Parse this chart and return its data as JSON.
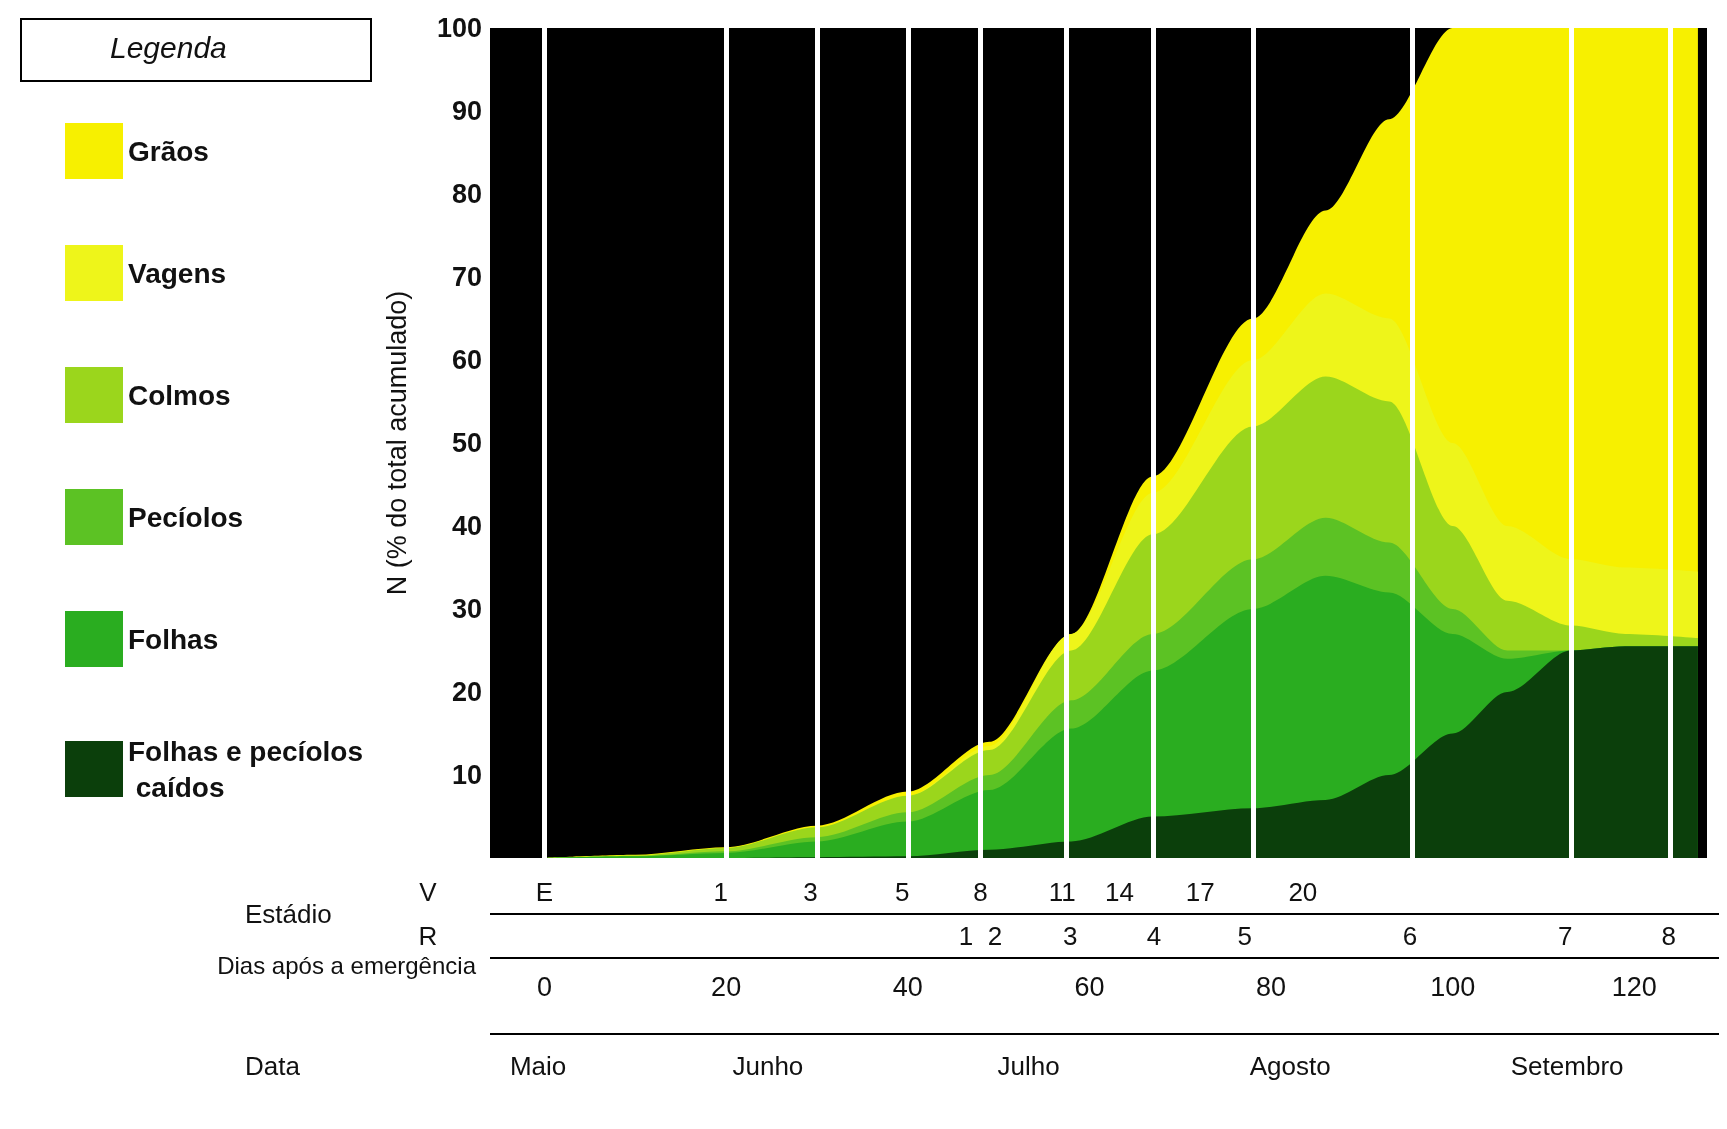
{
  "chart_data": {
    "type": "area",
    "stacked": true,
    "ylabel": "N (% do total acumulado)",
    "xlabel": "Dias após a emergência",
    "legend": "left",
    "legend_title": "Legenda",
    "annotations": [
      "Estádio",
      "V",
      "R",
      "Data",
      "E",
      "1",
      "3",
      "5",
      "8",
      "11",
      "14",
      "17",
      "20",
      "1",
      "2",
      "3",
      "4",
      "5",
      "6",
      "7",
      "8",
      "Maio",
      "Junho",
      "Julho",
      "Agosto",
      "Setembro"
    ],
    "x": [
      0,
      10,
      20,
      30,
      40,
      49,
      58,
      67,
      78,
      86,
      93,
      100,
      106,
      113,
      119,
      127
    ],
    "xlim": [
      -6,
      128
    ],
    "xticks": [
      0,
      20,
      40,
      60,
      80,
      100,
      120
    ],
    "ylim": [
      0,
      100
    ],
    "yticks": [
      10,
      20,
      30,
      40,
      50,
      60,
      70,
      80,
      90,
      100
    ],
    "ref_lines": [
      {
        "axis": "x",
        "value": 0,
        "color": "#ffffff"
      },
      {
        "axis": "x",
        "value": 20,
        "color": "#ffffff"
      },
      {
        "axis": "x",
        "value": 30,
        "color": "#ffffff"
      },
      {
        "axis": "x",
        "value": 40,
        "color": "#ffffff"
      },
      {
        "axis": "x",
        "value": 48,
        "color": "#ffffff"
      },
      {
        "axis": "x",
        "value": 57.5,
        "color": "#ffffff"
      },
      {
        "axis": "x",
        "value": 67,
        "color": "#ffffff"
      },
      {
        "axis": "x",
        "value": 78,
        "color": "#ffffff"
      },
      {
        "axis": "x",
        "value": 95.5,
        "color": "#ffffff"
      },
      {
        "axis": "x",
        "value": 113,
        "color": "#ffffff"
      },
      {
        "axis": "x",
        "value": 124,
        "color": "#ffffff"
      }
    ],
    "series": [
      {
        "name": "Folhas e pecíolos caídos",
        "color": "#0b3f0b",
        "values": [
          0,
          0,
          0,
          0.1,
          0.2,
          1,
          2,
          5,
          6,
          7,
          10,
          15,
          20,
          25,
          25.5,
          25.5
        ]
      },
      {
        "name": "Folhas",
        "color": "#2aad20",
        "values": [
          0,
          0.2,
          0.6,
          1.9,
          4.2,
          7.2,
          13.6,
          17.6,
          24,
          27,
          22,
          12,
          4,
          0,
          0,
          0
        ]
      },
      {
        "name": "Pecíolos",
        "color": "#5cc224",
        "values": [
          0,
          0,
          0.2,
          0.5,
          1.1,
          1.8,
          3.4,
          4.4,
          6,
          7,
          6,
          3,
          1,
          0,
          0,
          0
        ]
      },
      {
        "name": "Colmos",
        "color": "#9bd61c",
        "values": [
          0,
          0.1,
          0.4,
          1.2,
          2,
          3,
          6,
          12,
          16,
          17,
          17,
          10,
          6,
          3,
          1.5,
          1
        ]
      },
      {
        "name": "Vagens",
        "color": "#eef51a",
        "values": [
          0,
          0,
          0,
          0,
          0,
          0.5,
          2,
          5,
          8,
          10,
          10,
          10,
          9,
          8,
          8,
          8
        ]
      },
      {
        "name": "Grãos",
        "color": "#f7f000",
        "values": [
          0,
          0.1,
          0.1,
          0.2,
          0.5,
          0.5,
          0,
          2,
          5,
          10,
          24,
          50,
          60,
          64,
          65,
          65.5
        ]
      }
    ]
  }
}
